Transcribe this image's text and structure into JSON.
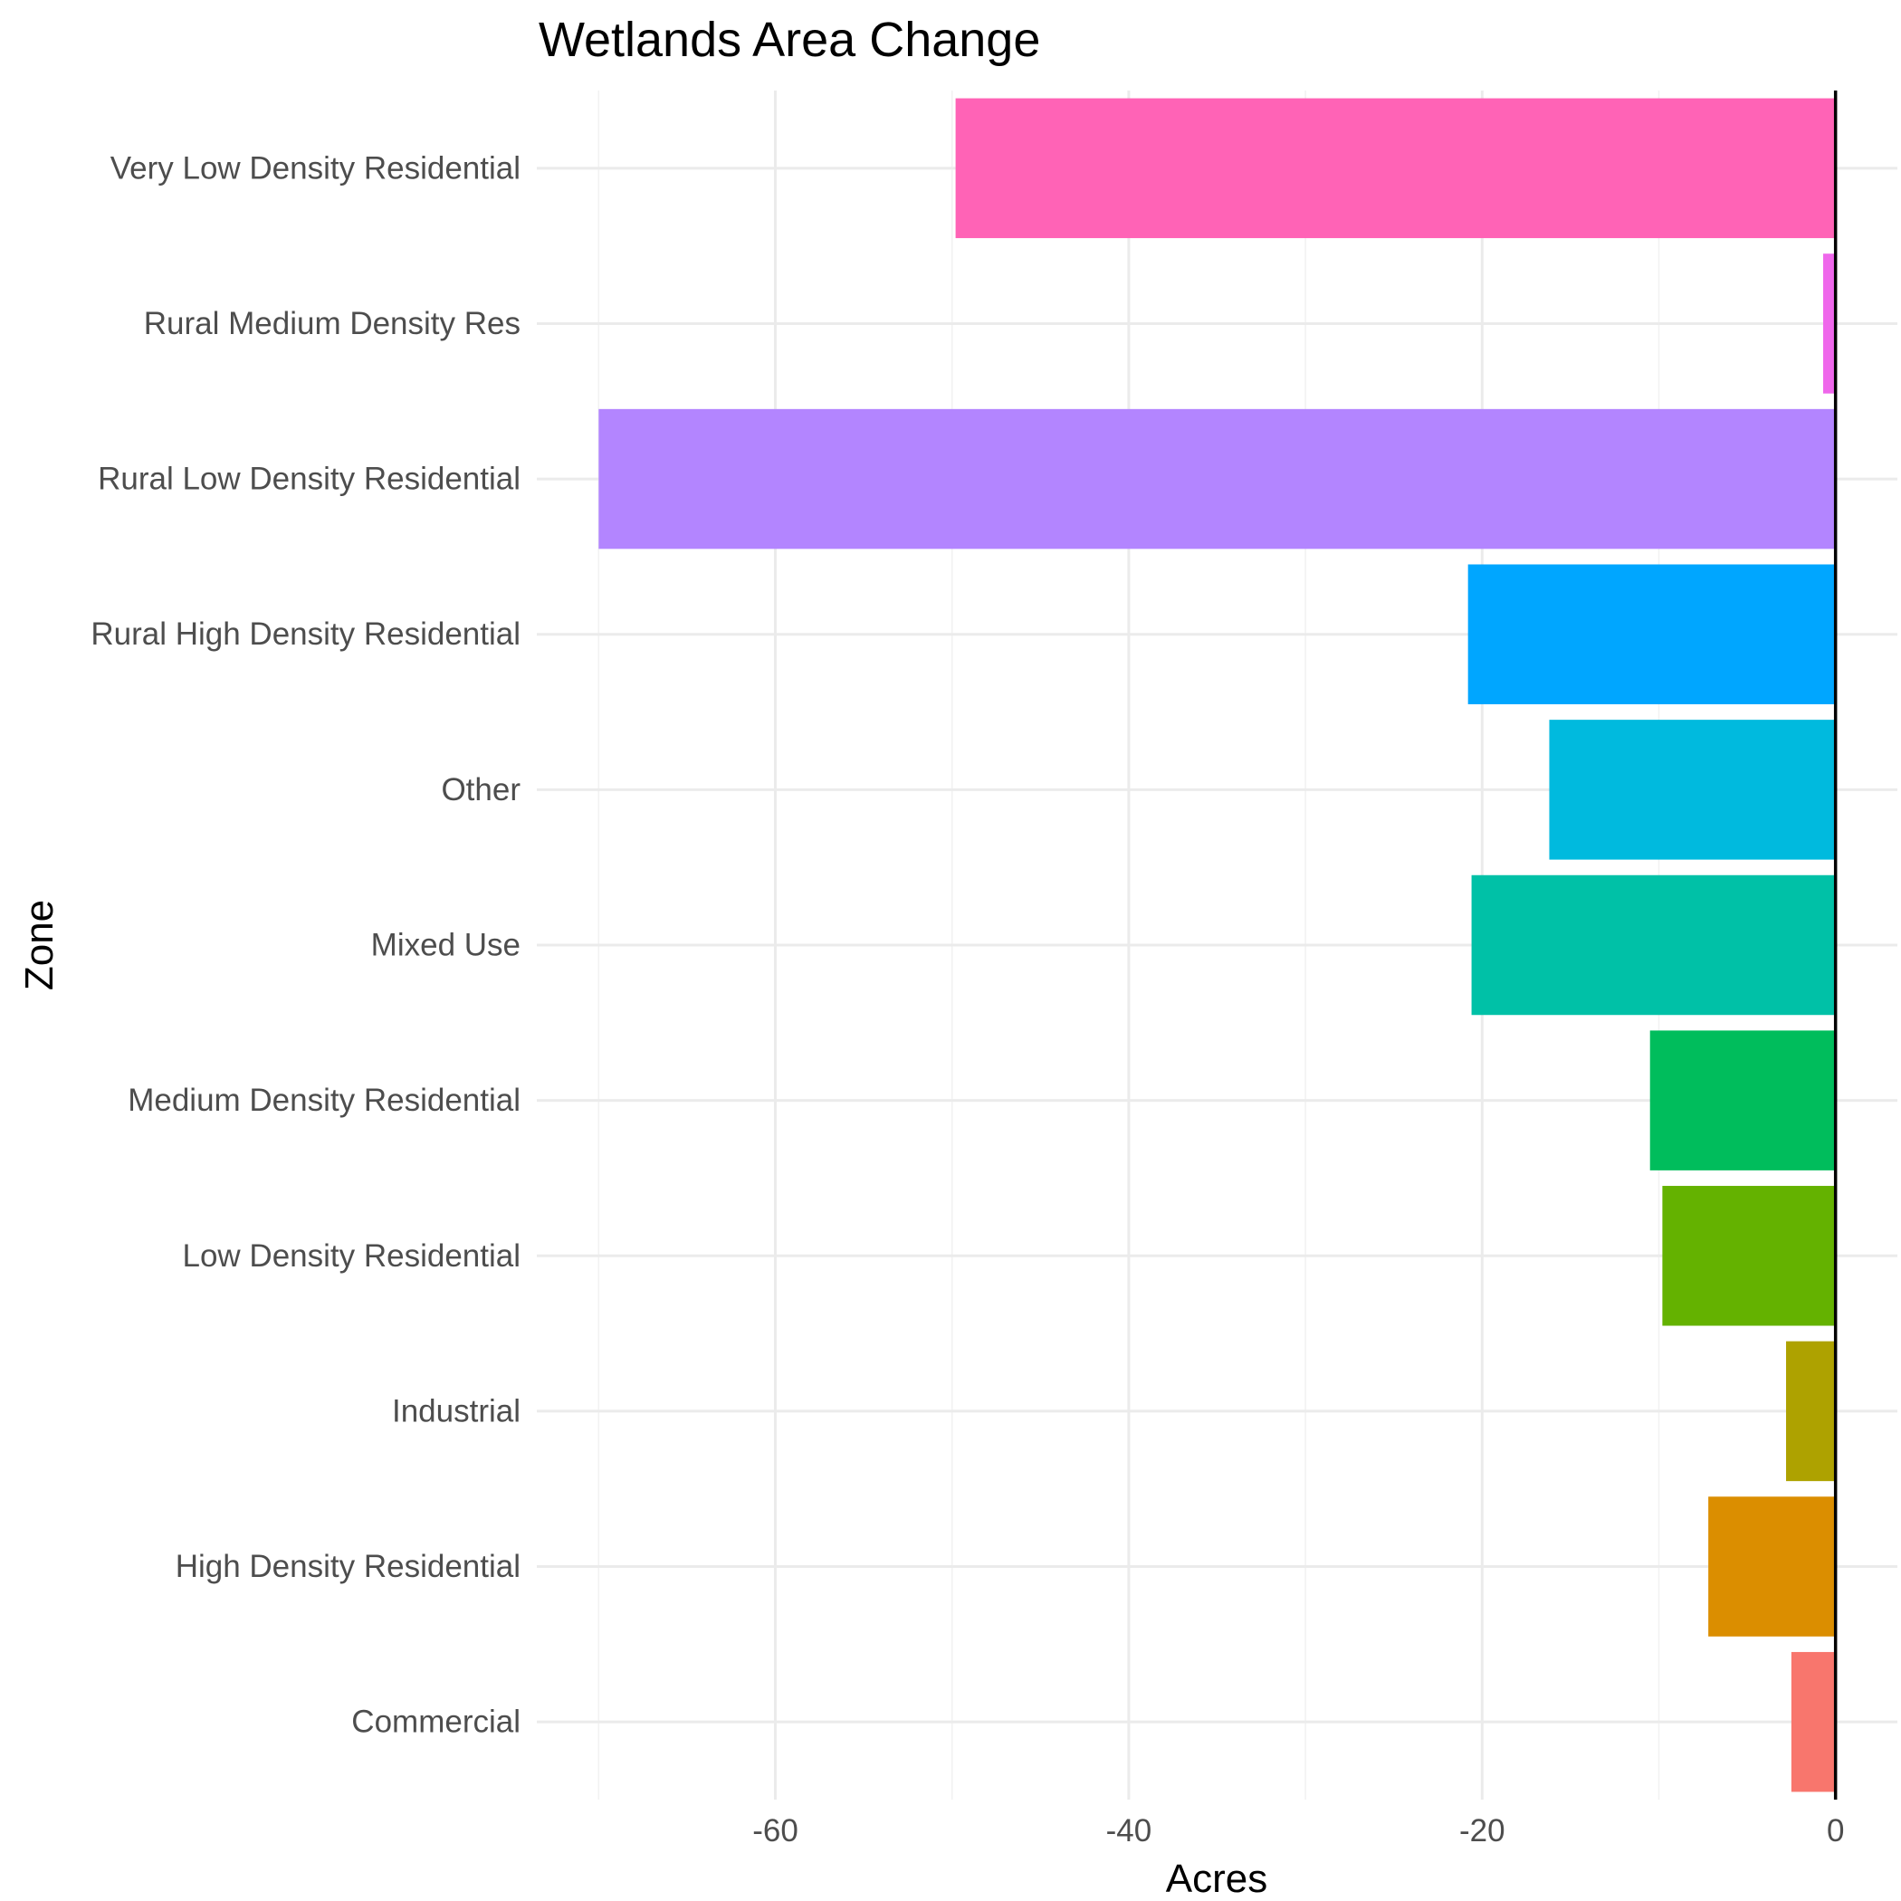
{
  "chart_data": {
    "type": "bar",
    "orientation": "horizontal",
    "title": "Wetlands Area Change",
    "xlabel": "Acres",
    "ylabel": "Zone",
    "xlim": [
      -73.5,
      3.5
    ],
    "x_ticks": [
      -60,
      -40,
      -20,
      0
    ],
    "x_minor_ticks": [
      -70,
      -50,
      -30,
      -10
    ],
    "x_tick_labels": [
      "-60",
      "-40",
      "-20",
      "0"
    ],
    "grid": true,
    "legend": "none",
    "reference_line": 0,
    "categories": [
      "Commercial",
      "High Density Residential",
      "Industrial",
      "Low Density Residential",
      "Medium Density Residential",
      "Mixed Use",
      "Other",
      "Rural High Density Residential",
      "Rural Low Density Residential",
      "Rural Medium Density Res",
      "Very Low Density Residential"
    ],
    "values": [
      -2.5,
      -7.2,
      -2.8,
      -9.8,
      -10.5,
      -20.6,
      -16.2,
      -20.8,
      -70.0,
      -0.7,
      -49.8
    ],
    "colors": [
      "#F8766D",
      "#DB8E00",
      "#AEA200",
      "#64B200",
      "#00BD5C",
      "#00C1A7",
      "#00BADE",
      "#00A6FF",
      "#B385FF",
      "#EF67EB",
      "#FF63B6"
    ]
  }
}
